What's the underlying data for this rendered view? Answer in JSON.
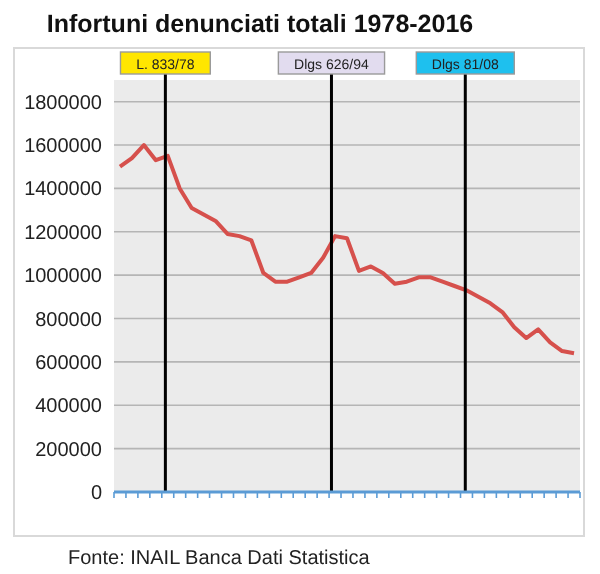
{
  "chart_data": {
    "type": "line",
    "title": "Infortuni denunciati totali 1978-2016",
    "categories": [
      null,
      null,
      null,
      null,
      null,
      null,
      null,
      null,
      null,
      null,
      null,
      null,
      null,
      null,
      null,
      null,
      null,
      null,
      null,
      null,
      null,
      null,
      null,
      null,
      null,
      null,
      null,
      null,
      null,
      null,
      null,
      null,
      null,
      null,
      null,
      null,
      null,
      null,
      null
    ],
    "series": [
      {
        "color": "#d6504c",
        "values": [
          1500000,
          1540000,
          1600000,
          1530000,
          1550000,
          1400000,
          1310000,
          1280000,
          1250000,
          1190000,
          1180000,
          1160000,
          1010000,
          970000,
          970000,
          990000,
          1010000,
          1080000,
          1180000,
          1170000,
          1020000,
          1040000,
          1010000,
          960000,
          970000,
          990000,
          990000,
          970000,
          950000,
          930000,
          900000,
          870000,
          830000,
          760000,
          710000,
          750000,
          690000,
          650000,
          640000
        ]
      }
    ],
    "ylim": [
      0,
      1900000
    ],
    "yticks": [
      0,
      200000,
      400000,
      600000,
      800000,
      1000000,
      1200000,
      1400000,
      1600000,
      1800000
    ],
    "tick_labels": "y",
    "grid": "y",
    "legend": false,
    "marker": "none",
    "line_style": "solid",
    "annotations": [
      "L. 833/78",
      "Dlgs 626/94",
      "Dlgs 81/08",
      "Fonte: INAIL Banca Dati Statistica"
    ]
  }
}
